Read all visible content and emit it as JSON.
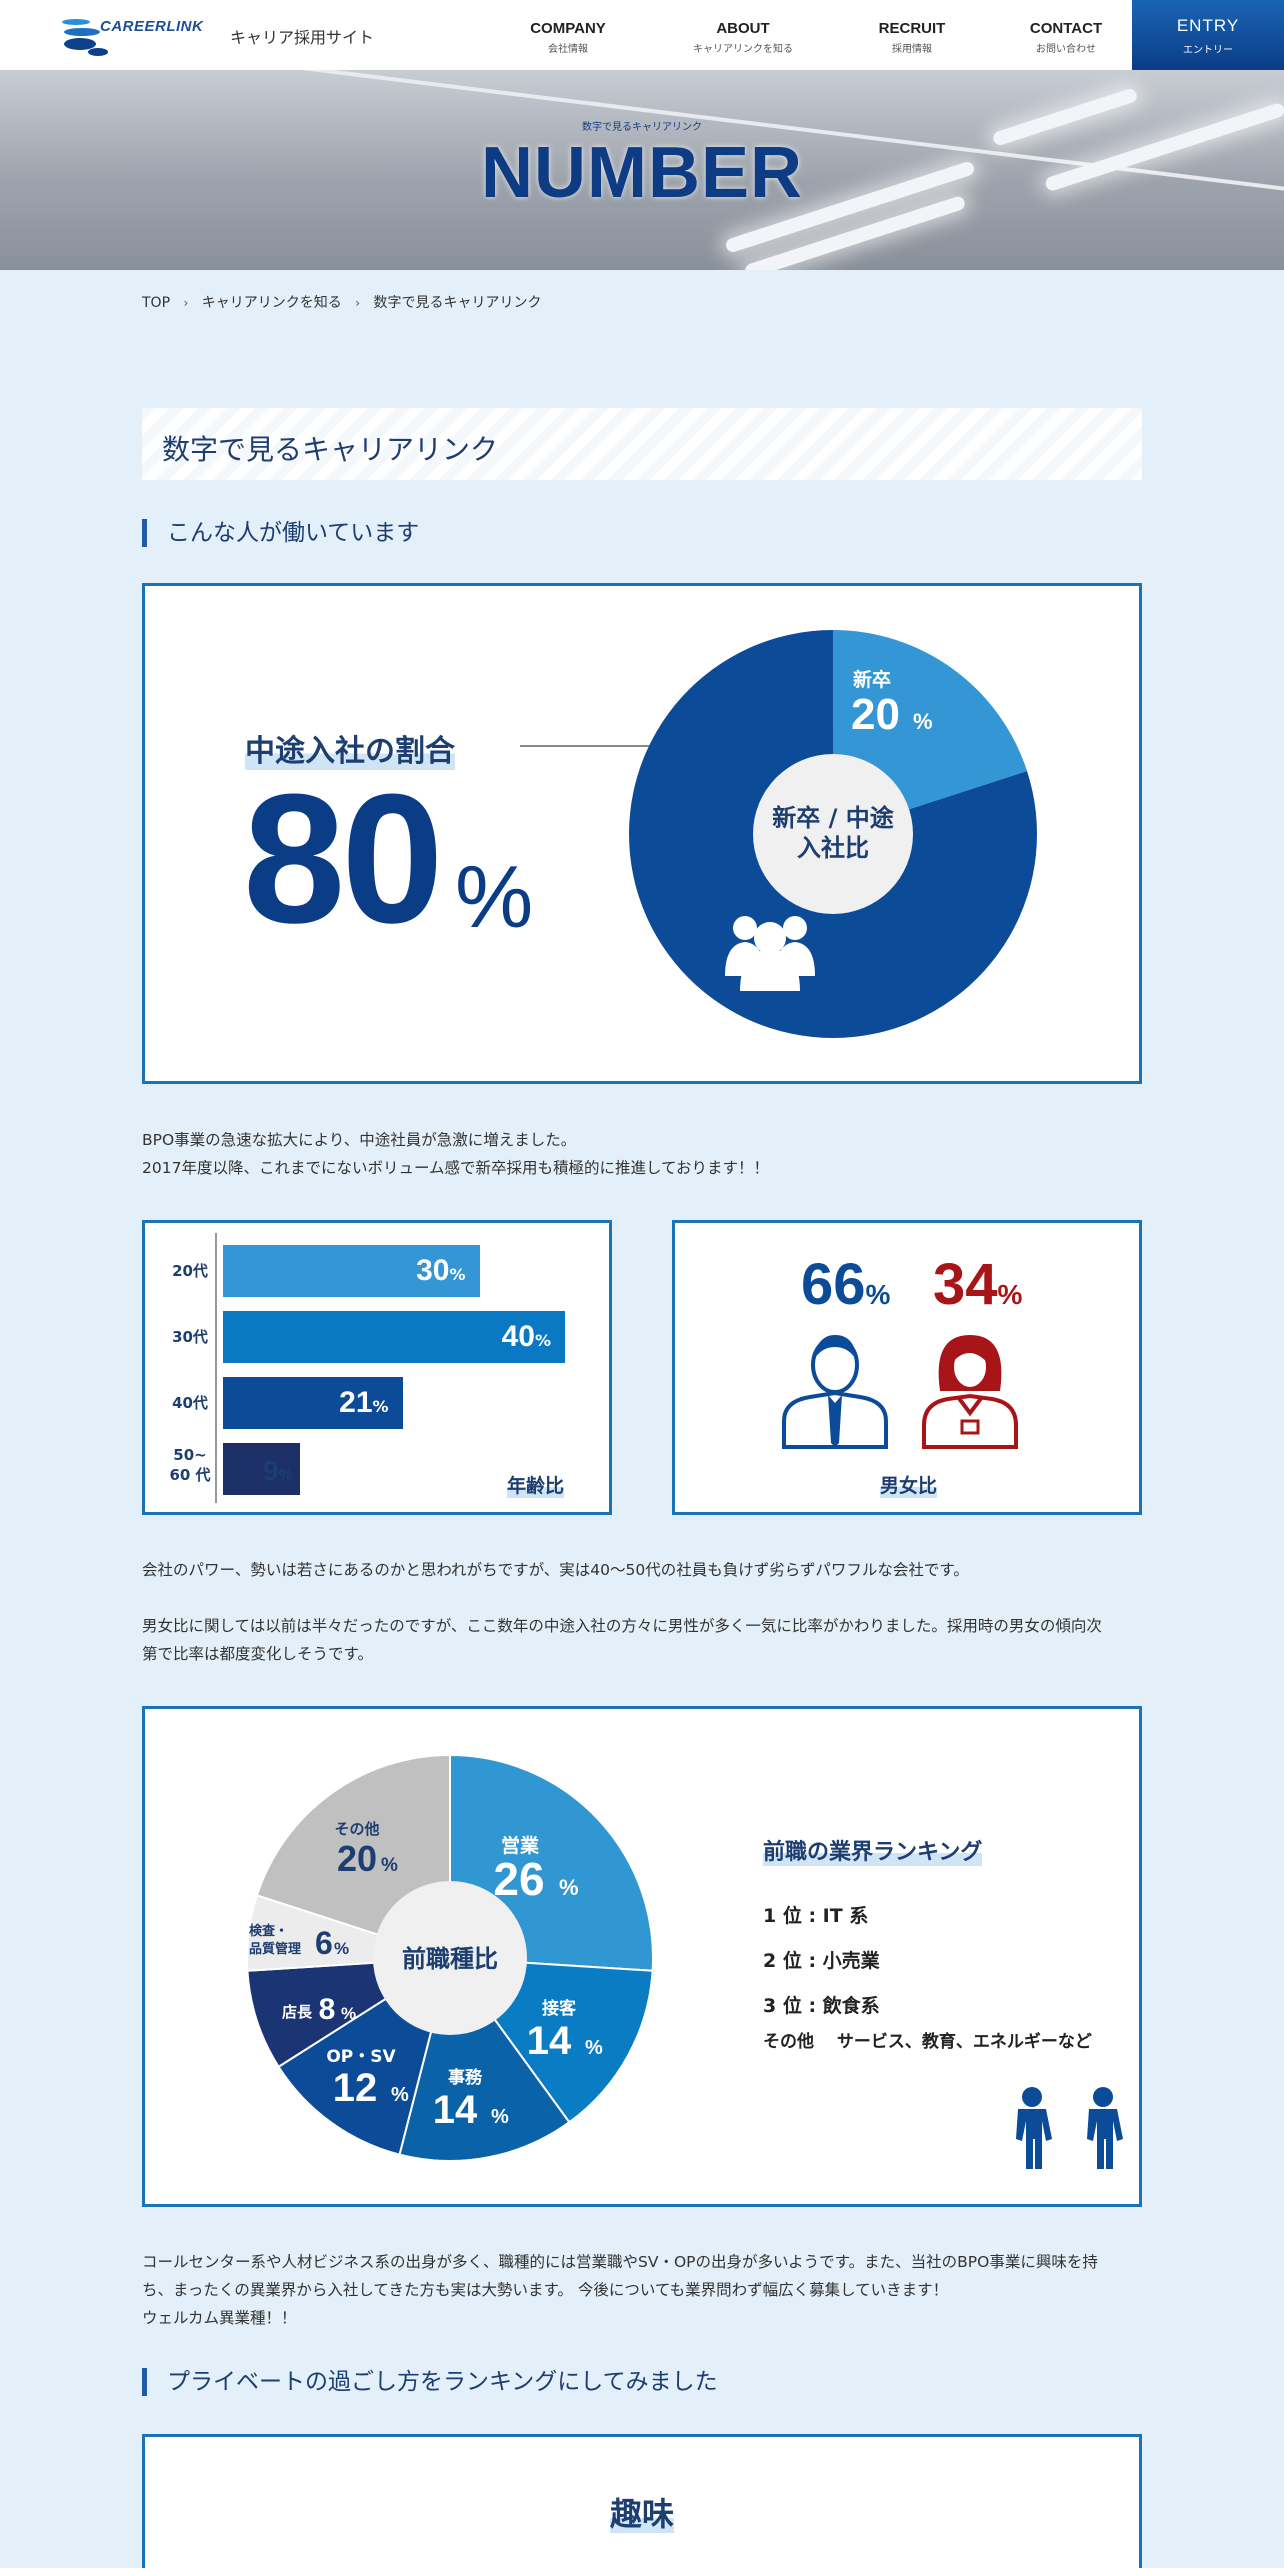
{
  "header": {
    "logo_text": "CAREERLINK",
    "site_name": "キャリア採用サイト",
    "nav": [
      {
        "en": "COMPANY",
        "ja": "会社情報"
      },
      {
        "en": "ABOUT",
        "ja": "キャリアリンクを知る"
      },
      {
        "en": "RECRUIT",
        "ja": "採用情報"
      },
      {
        "en": "CONTACT",
        "ja": "お問い合わせ"
      }
    ],
    "entry": {
      "en": "ENTRY",
      "ja": "エントリー"
    }
  },
  "hero": {
    "subtitle": "数字で見るキャリアリンク",
    "title": "NUMBER"
  },
  "breadcrumb": [
    "TOP",
    "キャリアリンクを知る",
    "数字で見るキャリアリンク"
  ],
  "page_heading": "数字で見るキャリアリンク",
  "section1": {
    "heading": "こんな人が働いています",
    "career_ratio": {
      "title": "中途入社の割合",
      "value": "80",
      "unit": "%",
      "donut_center": [
        "新卒 / 中途",
        "入社比"
      ],
      "new_grad_label": "新卒",
      "new_grad_value": "20",
      "new_grad_unit": "%",
      "colors": {
        "career": "#0b4b98",
        "new_grad": "#3496d4",
        "center": "#f0f0f0"
      }
    },
    "para1": [
      "BPO事業の急速な拡大により、中途社員が急激に増えました。",
      "2017年度以降、これまでにないボリューム感で新卒採用も積極的に推進しております！！"
    ],
    "age": {
      "caption": "年齢比",
      "bars": [
        {
          "label": "20代",
          "value": 30,
          "unit": "%",
          "color": "#3496d4"
        },
        {
          "label": "30代",
          "value": 40,
          "unit": "%",
          "color": "#0a78c2"
        },
        {
          "label": "40代",
          "value": 21,
          "unit": "%",
          "color": "#0b4b98"
        },
        {
          "label": "50~\n60 代",
          "value": 9,
          "unit": "%",
          "color": "#1c2f66"
        }
      ]
    },
    "gender": {
      "caption": "男女比",
      "male": {
        "value": "66",
        "unit": "%",
        "color": "#0b4b98"
      },
      "female": {
        "value": "34",
        "unit": "%",
        "color": "#a81519"
      }
    },
    "para2": "会社のパワー、勢いは若さにあるのかと思われがちですが、実は40〜50代の社員も負けず劣らずパワフルな会社です。",
    "para3": [
      "男女比に関しては以前は半々だったのですが、ここ数年の中途入社の方々に男性が多く一気に比率がかわりました。採用時の男女の傾向次",
      "第で比率は都度変化しそうです。"
    ],
    "industry": {
      "center": "前職種比",
      "slices": [
        {
          "name": "営業",
          "value": 26,
          "unit": "%",
          "color": "#3197d3"
        },
        {
          "name": "接客",
          "value": 14,
          "unit": "%",
          "color": "#0a7cc4"
        },
        {
          "name": "事務",
          "value": 14,
          "unit": "%",
          "color": "#0a63a8"
        },
        {
          "name": "OP・SV",
          "value": 12,
          "unit": "%",
          "color": "#0b4b98"
        },
        {
          "name": "店長",
          "value": 8,
          "unit": "%",
          "color": "#1a3474"
        },
        {
          "name": "検査・品質管理",
          "value": 6,
          "unit": "%",
          "color": "#ececec"
        },
        {
          "name": "その他",
          "value": 20,
          "unit": "%",
          "color": "#c0c0c0"
        }
      ],
      "ranking_title": "前職の業界ランキング",
      "ranking": [
        "1 位 : IT 系",
        "2 位 : 小売業",
        "3 位 : 飲食系"
      ],
      "ranking_other": "その他　 サービス、教育、エネルギーなど"
    },
    "para4": [
      "コールセンター系や人材ビジネス系の出身が多く、職種的には営業職やSV・OPの出身が多いようです。また、当社のBPO事業に興味を持",
      "ち、まったくの異業界から入社してきた方も実は大勢います。 今後についても業界問わず幅広く募集していきます！",
      "ウェルカム異業種！！"
    ]
  },
  "section2": {
    "heading": "プライベートの過ごし方をランキングにしてみました",
    "hobby_title": "趣味"
  }
}
